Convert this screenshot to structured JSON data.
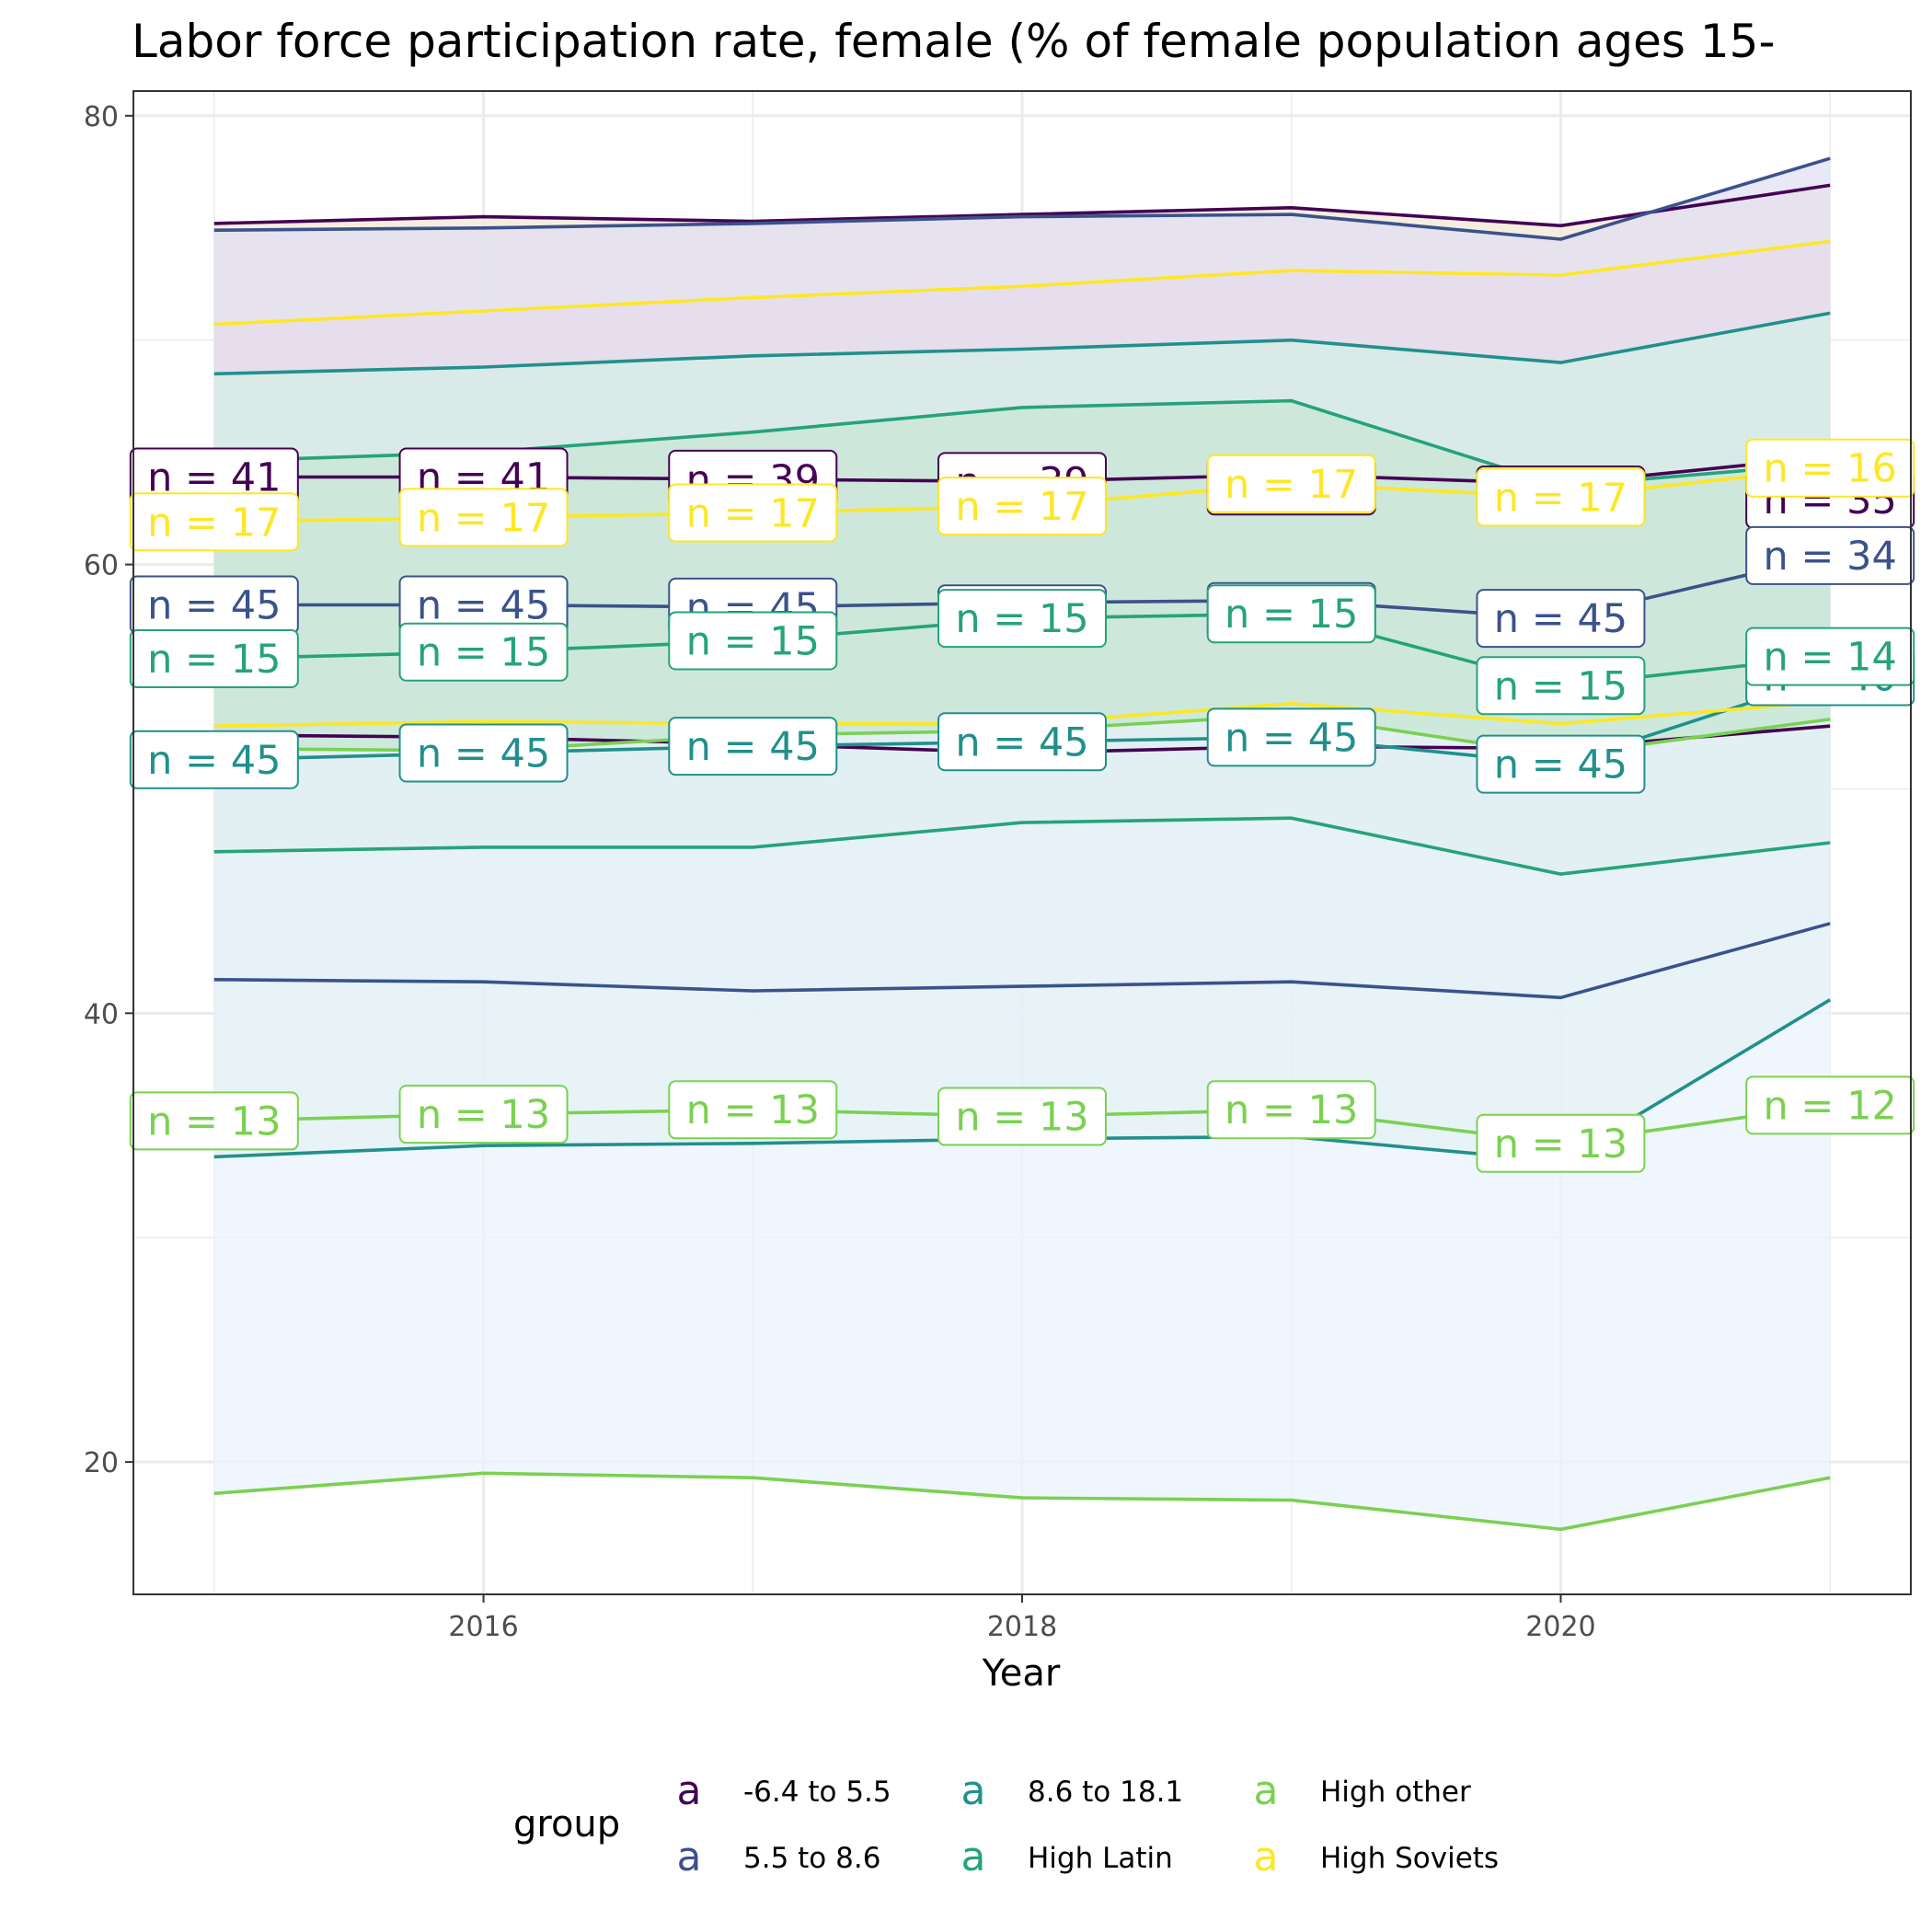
{
  "chart_data": {
    "type": "line",
    "title": "Labor force participation rate, female (% of female population ages 15-",
    "xlabel": "Year",
    "ylabel": "",
    "x": [
      2015,
      2016,
      2017,
      2018,
      2019,
      2020,
      2021
    ],
    "xlim": [
      2014.7,
      2021.3
    ],
    "ylim": [
      14.1,
      81.1
    ],
    "x_ticks": [
      2016,
      2018,
      2020
    ],
    "y_ticks": [
      20,
      40,
      60,
      80
    ],
    "x_tick_labels": [
      "2016",
      "2018",
      "2020"
    ],
    "y_tick_labels": [
      "20",
      "40",
      "60",
      "80"
    ],
    "grid": true,
    "legend_title": "group",
    "legend_position": "bottom",
    "legend_key_glyph": "a",
    "label_prefix": "n = ",
    "series": [
      {
        "name": "-6.4 to 5.5",
        "color": "#440154",
        "fill": "#F2E6D6",
        "upper": [
          75.2,
          75.5,
          75.3,
          75.6,
          75.9,
          75.1,
          76.9
        ],
        "mean": [
          63.9,
          63.9,
          63.8,
          63.7,
          64.0,
          63.6,
          64.8
        ],
        "median": [
          52.4,
          52.3,
          52.0,
          51.6,
          51.9,
          51.8,
          52.8
        ],
        "counts": [
          41,
          41,
          39,
          39,
          39,
          39,
          35
        ],
        "label_dy": [
          0,
          0,
          0,
          0,
          -0.5,
          -0.5,
          -1.9
        ]
      },
      {
        "name": "5.5 to 8.6",
        "color": "#3B528B",
        "fill": "#DFDFF2",
        "upper": [
          74.9,
          75.0,
          75.2,
          75.5,
          75.6,
          74.5,
          78.1
        ],
        "mean": [
          58.2,
          58.2,
          58.1,
          58.3,
          58.4,
          57.6,
          60.4
        ],
        "median": [
          41.5,
          41.4,
          41.0,
          41.2,
          41.4,
          40.7,
          44.0
        ],
        "counts": [
          45,
          45,
          45,
          45,
          45,
          45,
          34
        ],
        "label_dy": [
          0,
          0,
          0,
          -0.5,
          -0.5,
          0,
          0
        ]
      },
      {
        "name": "8.6 to 18.1",
        "color": "#21908C",
        "fill": "#D6EEE6",
        "upper": [
          68.5,
          68.8,
          69.3,
          69.6,
          70.0,
          69.0,
          71.2
        ],
        "mean": [
          51.3,
          51.6,
          51.9,
          52.1,
          52.3,
          51.1,
          55.0
        ],
        "median": [
          33.6,
          34.1,
          34.2,
          34.4,
          34.5,
          33.4,
          40.6
        ],
        "counts": [
          45,
          45,
          45,
          45,
          45,
          45,
          40
        ],
        "label_dy": [
          0,
          0,
          0,
          0,
          0,
          0,
          0
        ]
      },
      {
        "name": "High Latin",
        "color": "#26A37A",
        "fill": "#C8E8D6",
        "upper": [
          64.6,
          65.0,
          65.9,
          67.0,
          67.3,
          63.5,
          64.5
        ],
        "mean": [
          55.8,
          56.1,
          56.6,
          57.6,
          57.8,
          54.6,
          55.9
        ],
        "median": [
          47.2,
          47.4,
          47.4,
          48.5,
          48.7,
          46.2,
          47.6
        ],
        "counts": [
          15,
          15,
          15,
          15,
          15,
          15,
          14
        ],
        "label_dy": [
          0,
          0,
          0,
          0,
          0,
          0,
          0
        ]
      },
      {
        "name": "High other",
        "color": "#7AD151",
        "fill": "#EAF2FC",
        "upper": [
          51.8,
          51.7,
          52.4,
          52.6,
          53.3,
          51.5,
          53.1
        ],
        "mean": [
          35.2,
          35.5,
          35.7,
          35.4,
          35.7,
          34.2,
          35.9
        ],
        "median": [
          18.6,
          19.5,
          19.3,
          18.4,
          18.3,
          17.0,
          19.3
        ],
        "counts": [
          13,
          13,
          13,
          13,
          13,
          13,
          12
        ],
        "label_dy": [
          0,
          0,
          0,
          0,
          0,
          0,
          0
        ]
      },
      {
        "name": "High Soviets",
        "color": "#FDE725",
        "fill": "#F5D6DA",
        "upper": [
          70.7,
          71.3,
          71.9,
          72.4,
          73.1,
          72.9,
          74.4
        ],
        "mean": [
          61.9,
          62.1,
          62.3,
          62.6,
          63.6,
          63.0,
          64.3
        ],
        "median": [
          52.8,
          53.0,
          52.9,
          52.9,
          53.8,
          52.9,
          53.9
        ],
        "counts": [
          17,
          17,
          17,
          17,
          17,
          17,
          16
        ],
        "label_dy": [
          0,
          0,
          0,
          0,
          0,
          0,
          0
        ]
      }
    ],
    "ribbon_order": [
      "-6.4 to 5.5",
      "High Soviets",
      "5.5 to 8.6",
      "8.6 to 18.1",
      "High Latin",
      "High other"
    ]
  }
}
